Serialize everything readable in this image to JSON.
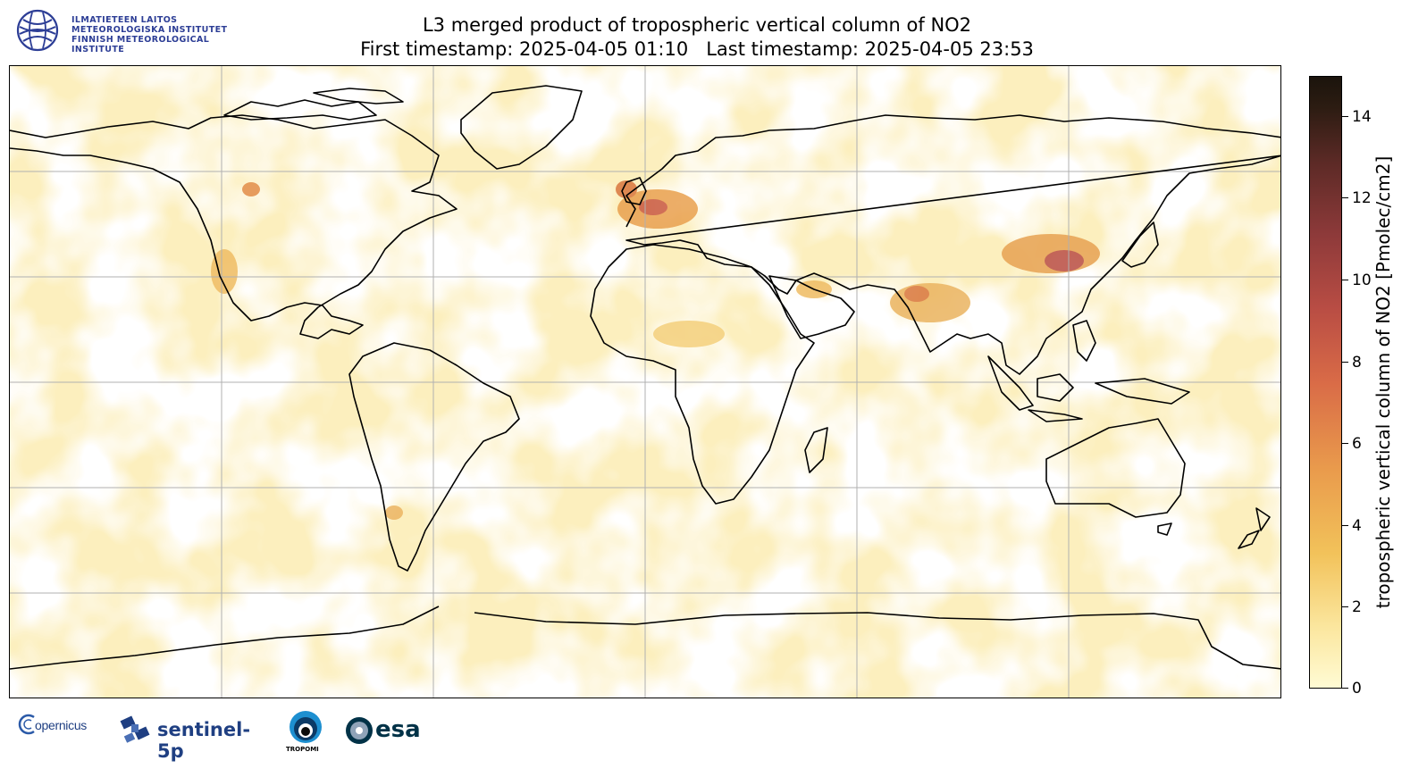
{
  "header": {
    "org_lines": [
      "ILMATIETEEN LAITOS",
      "METEOROLOGISKA INSTITUTET",
      "FINNISH METEOROLOGICAL INSTITUTE"
    ],
    "title_line1": "L3 merged product of tropospheric vertical column of NO2",
    "title_line2": "First timestamp: 2025-04-05 01:10   Last timestamp: 2025-04-05 23:53"
  },
  "colorbar": {
    "label": "tropospheric vertical column of NO2 [Pmolec/cm2]",
    "min": 0,
    "max": 15,
    "ticks": [
      "0",
      "2",
      "4",
      "6",
      "8",
      "10",
      "12",
      "14"
    ],
    "colors": [
      "#fffbd4",
      "#f2c25a",
      "#d96b47",
      "#8e3a3a",
      "#1b140c"
    ]
  },
  "map": {
    "projection": "plate-carree",
    "gridlines": true,
    "land_outline_color": "#000000",
    "background_color": "#fdf3c4"
  },
  "footer": {
    "copernicus": "opernicus",
    "sentinel": "sentinel-5p",
    "tropomi": "TROPOMI",
    "esa": "esa"
  },
  "colors": {
    "fmi_blue": "#2d3e96",
    "esa_blue": "#003247"
  }
}
